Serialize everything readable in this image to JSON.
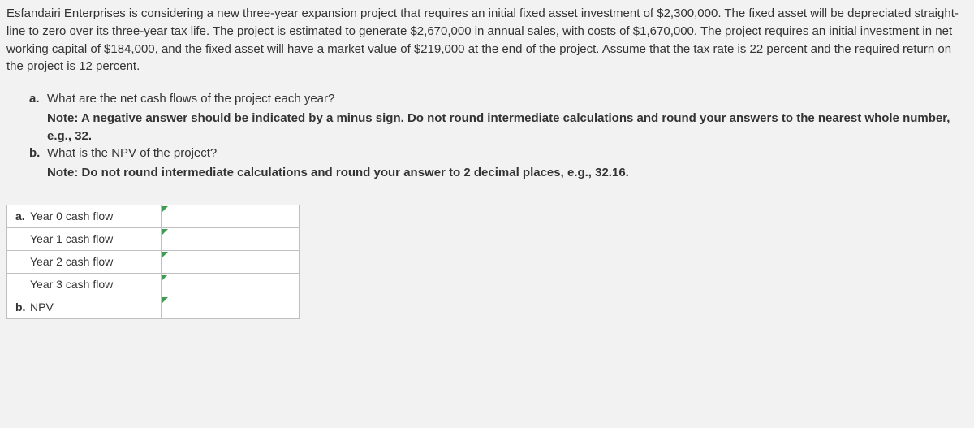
{
  "problem": {
    "text": "Esfandairi Enterprises is considering a new three-year expansion project that requires an initial fixed asset investment of $2,300,000. The fixed asset will be depreciated straight-line to zero over its three-year tax life. The project is estimated to generate $2,670,000 in annual sales, with costs of $1,670,000. The project requires an initial investment in net working capital of $184,000, and the fixed asset will have a market value of $219,000 at the end of the project. Assume that the tax rate is 22 percent and the required return on the project is 12 percent."
  },
  "questions": {
    "a": {
      "letter": "a.",
      "text": "What are the net cash flows of the project each year?",
      "note": "Note: A negative answer should be indicated by a minus sign. Do not round intermediate calculations and round your answers to the nearest whole number, e.g., 32."
    },
    "b": {
      "letter": "b.",
      "text": "What is the NPV of the project?",
      "note": "Note: Do not round intermediate calculations and round your answer to 2 decimal places, e.g., 32.16."
    }
  },
  "table": {
    "rows": [
      {
        "letter": "a.",
        "label": "Year 0 cash flow",
        "value": ""
      },
      {
        "letter": "",
        "label": "Year 1 cash flow",
        "value": ""
      },
      {
        "letter": "",
        "label": "Year 2 cash flow",
        "value": ""
      },
      {
        "letter": "",
        "label": "Year 3 cash flow",
        "value": ""
      },
      {
        "letter": "b.",
        "label": "NPV",
        "value": ""
      }
    ]
  },
  "colors": {
    "background": "#f2f2f2",
    "text": "#333333",
    "table_border": "#bfbfbf",
    "cell_background": "#ffffff",
    "marker": "#3d9b52"
  },
  "typography": {
    "body_fontsize": 15,
    "table_fontsize": 14,
    "bold_weight": 700
  }
}
